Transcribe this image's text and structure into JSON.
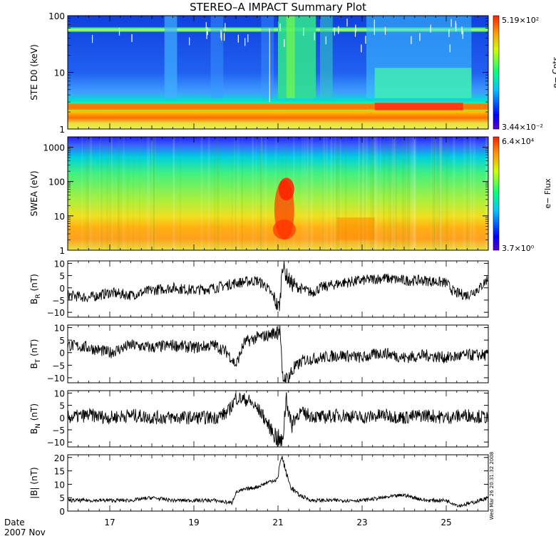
{
  "chart_data": {
    "type": "line",
    "title": "STEREO–A IMPACT Summary Plot",
    "time_axis": {
      "xlim": [
        "2007-11-16",
        "2007-11-26"
      ],
      "tick_labels": [
        "17",
        "19",
        "21",
        "23",
        "25"
      ],
      "corner_labels": [
        "Date",
        "2007 Nov"
      ]
    },
    "timestamp": "Wed Mar 26 20:31:32 2008",
    "panels": [
      {
        "id": "ste",
        "type": "heatmap",
        "ylabel": "STE D0 (keV)",
        "yscale": "log",
        "ylim": [
          1,
          100
        ],
        "ytick_labels": [
          "1",
          "10",
          "100"
        ],
        "colorbar": {
          "max_label": "5.19×10²",
          "min_label": "3.44×10⁻²",
          "label": "e− Cnts"
        }
      },
      {
        "id": "swea",
        "type": "heatmap",
        "ylabel": "SWEA (eV)",
        "yscale": "log",
        "ylim": [
          1,
          2000
        ],
        "ytick_labels": [
          "1",
          "10",
          "100",
          "1000"
        ],
        "colorbar": {
          "max_label": "6.4×10⁴",
          "min_label": "3.7×10⁰",
          "label": "e− Flux"
        }
      },
      {
        "id": "br",
        "type": "line",
        "ylabel": "B",
        "ylabel_sub": "R",
        "ylabel_unit": " (nT)",
        "ylim": [
          -12,
          11
        ],
        "ytick_labels": [
          "10",
          "5",
          "0",
          "−5",
          "−10"
        ],
        "ytick_values": [
          10,
          5,
          0,
          -5,
          -10
        ],
        "series": {
          "t": [
            16.0,
            16.5,
            17.0,
            17.5,
            18.0,
            18.5,
            19.0,
            19.5,
            20.0,
            20.5,
            20.7,
            20.9,
            21.0,
            21.05,
            21.1,
            21.2,
            21.3,
            21.5,
            21.8,
            22.0,
            22.5,
            23.0,
            23.5,
            24.0,
            24.5,
            25.0,
            25.2,
            25.5,
            25.8,
            26.0
          ],
          "v": [
            -3,
            -4,
            -2,
            -3,
            -1,
            0,
            -1,
            0,
            2,
            3,
            1,
            -4,
            -8,
            -6,
            10,
            5,
            2,
            0,
            -2,
            0,
            2,
            3,
            4,
            3,
            3,
            2,
            -2,
            -3,
            0,
            4
          ],
          "noise": 2.2
        }
      },
      {
        "id": "bt",
        "type": "line",
        "ylabel": "B",
        "ylabel_sub": "T",
        "ylabel_unit": " (nT)",
        "ylim": [
          -12,
          11
        ],
        "ytick_labels": [
          "10",
          "5",
          "0",
          "−5",
          "−10"
        ],
        "ytick_values": [
          10,
          5,
          0,
          -5,
          -10
        ],
        "series": {
          "t": [
            16.0,
            16.5,
            17.0,
            17.5,
            18.0,
            18.5,
            19.0,
            19.5,
            19.8,
            20.0,
            20.2,
            20.5,
            20.8,
            21.0,
            21.05,
            21.1,
            21.2,
            21.4,
            21.6,
            22.0,
            22.5,
            23.0,
            23.5,
            24.0,
            24.5,
            25.0,
            25.5,
            26.0
          ],
          "v": [
            3,
            2,
            0,
            3,
            2,
            3,
            2,
            3,
            0,
            -5,
            4,
            6,
            7,
            9,
            10,
            -10,
            -11,
            -6,
            -3,
            -2,
            -1,
            -2,
            0,
            -2,
            -1,
            -2,
            -1,
            -1
          ],
          "noise": 2.4
        }
      },
      {
        "id": "bn",
        "type": "line",
        "ylabel": "B",
        "ylabel_sub": "N",
        "ylabel_unit": " (nT)",
        "ylim": [
          -12,
          11
        ],
        "ytick_labels": [
          "10",
          "5",
          "0",
          "−5",
          "−10"
        ],
        "ytick_values": [
          10,
          5,
          0,
          -5,
          -10
        ],
        "series": {
          "t": [
            16.0,
            16.5,
            17.0,
            17.5,
            18.0,
            18.5,
            19.0,
            19.5,
            19.8,
            20.0,
            20.3,
            20.6,
            20.8,
            21.0,
            21.1,
            21.2,
            21.3,
            21.5,
            22.0,
            22.5,
            23.0,
            23.5,
            24.0,
            24.5,
            25.0,
            25.5,
            26.0
          ],
          "v": [
            0,
            1,
            0,
            1,
            0,
            0,
            0,
            0,
            2,
            8,
            7,
            2,
            -4,
            -9,
            -11,
            9,
            -3,
            2,
            0,
            1,
            0,
            1,
            0,
            1,
            0,
            1,
            0
          ],
          "noise": 2.8
        }
      },
      {
        "id": "bmag",
        "type": "line",
        "ylabel": "|B| (nT)",
        "ylim": [
          0,
          21
        ],
        "ytick_labels": [
          "20",
          "15",
          "10",
          "5",
          "0"
        ],
        "ytick_values": [
          20,
          15,
          10,
          5,
          0
        ],
        "series": {
          "t": [
            16.0,
            16.5,
            17.0,
            17.5,
            18.0,
            18.5,
            19.0,
            19.5,
            19.9,
            20.0,
            20.2,
            20.5,
            20.8,
            21.0,
            21.05,
            21.1,
            21.2,
            21.3,
            21.5,
            21.8,
            22.0,
            22.5,
            23.0,
            23.5,
            24.0,
            24.5,
            25.0,
            25.3,
            25.6,
            26.0
          ],
          "v": [
            4,
            4,
            4,
            4,
            5,
            4,
            4,
            4,
            3,
            7,
            8,
            9,
            11,
            12,
            19,
            20,
            14,
            9,
            6,
            4,
            4,
            4,
            4,
            5,
            6,
            4,
            4,
            2,
            3,
            5
          ],
          "noise": 0.7
        }
      }
    ]
  }
}
